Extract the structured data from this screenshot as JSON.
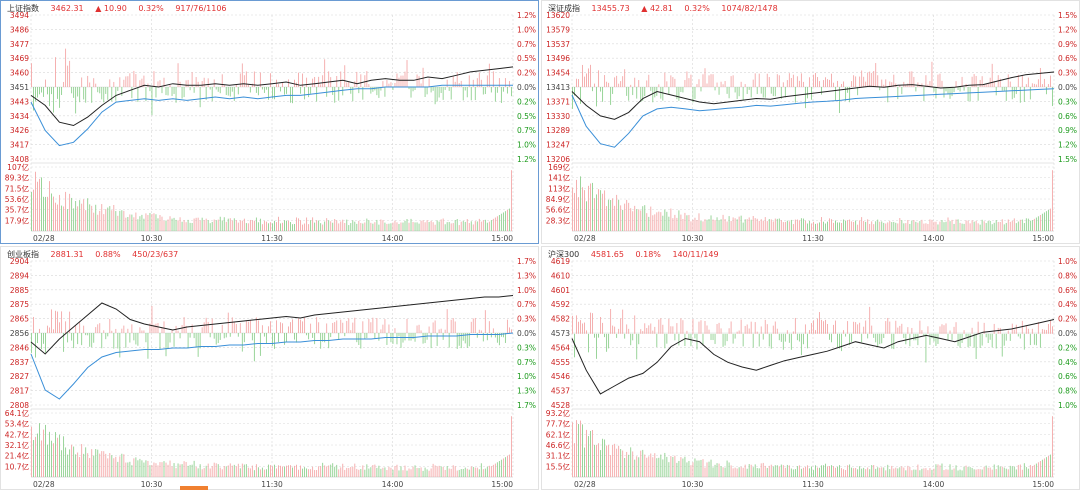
{
  "colors": {
    "up": "#e03030",
    "down": "#23a030",
    "price_line": "#222222",
    "avg_line": "#3a8fd8",
    "grid": "#d8d8d8",
    "label_left": "#cc2222",
    "label_right_green": "#1a9a1a"
  },
  "chart_data": [
    {
      "type": "line",
      "index_name": "上证指数",
      "price": "3462.31",
      "change": "▲ 10.90",
      "change_pct": "0.32%",
      "breadth": "917/76/1106",
      "active": true,
      "price_ticks": [
        "3494",
        "3486",
        "3477",
        "3469",
        "3460",
        "3451",
        "3443",
        "3434",
        "3426",
        "3417",
        "3408"
      ],
      "pct_ticks_up": [
        "1.2%",
        "1.0%",
        "0.7%",
        "0.5%",
        "0.2%"
      ],
      "pct_zero": "0.0%",
      "pct_ticks_down": [
        "0.2%",
        "0.5%",
        "0.7%",
        "1.0%",
        "1.2%"
      ],
      "volume_ticks": [
        "107亿",
        "89.3亿",
        "71.5亿",
        "53.6亿",
        "35.7亿",
        "17.9亿"
      ],
      "time_ticks": [
        "02/28",
        "10:30",
        "11:30",
        "14:00",
        "15:00"
      ],
      "ylim": [
        3408,
        3494
      ],
      "prev_close": 3451,
      "price_series": [
        3446,
        3440,
        3430,
        3428,
        3433,
        3440,
        3446,
        3449,
        3452,
        3451,
        3453,
        3452,
        3452,
        3453,
        3452,
        3453,
        3452,
        3453,
        3454,
        3452,
        3453,
        3454,
        3455,
        3453,
        3455,
        3456,
        3455,
        3455,
        3457,
        3456,
        3458,
        3460,
        3461,
        3462,
        3463
      ],
      "avg_series": [
        3442,
        3425,
        3416,
        3418,
        3426,
        3436,
        3442,
        3443,
        3444,
        3443,
        3444,
        3443,
        3444,
        3445,
        3444,
        3445,
        3444,
        3445,
        3446,
        3446,
        3447,
        3448,
        3449,
        3450,
        3450,
        3451,
        3451,
        3451,
        3451,
        3452,
        3452,
        3452,
        3452,
        3452,
        3452
      ]
    },
    {
      "type": "line",
      "index_name": "深证成指",
      "price": "13455.73",
      "change": "▲ 42.81",
      "change_pct": "0.32%",
      "breadth": "1074/82/1478",
      "active": false,
      "price_ticks": [
        "13620",
        "13579",
        "13537",
        "13496",
        "13454",
        "13413",
        "13371",
        "13330",
        "13289",
        "13247",
        "13206"
      ],
      "pct_ticks_up": [
        "1.5%",
        "1.2%",
        "0.9%",
        "0.6%",
        "0.3%"
      ],
      "pct_zero": "0.0%",
      "pct_ticks_down": [
        "0.3%",
        "0.6%",
        "0.9%",
        "1.2%",
        "1.5%"
      ],
      "volume_ticks": [
        "169亿",
        "141亿",
        "113亿",
        "84.9亿",
        "56.6亿",
        "28.3亿"
      ],
      "time_ticks": [
        "02/28",
        "10:30",
        "11:30",
        "14:00",
        "15:00"
      ],
      "ylim": [
        13206,
        13620
      ],
      "prev_close": 13413,
      "price_series": [
        13400,
        13360,
        13330,
        13320,
        13340,
        13380,
        13400,
        13390,
        13380,
        13370,
        13365,
        13370,
        13375,
        13380,
        13378,
        13385,
        13390,
        13395,
        13400,
        13405,
        13410,
        13415,
        13412,
        13418,
        13420,
        13415,
        13410,
        13412,
        13418,
        13420,
        13430,
        13440,
        13448,
        13452,
        13456
      ],
      "avg_series": [
        13390,
        13300,
        13250,
        13240,
        13280,
        13330,
        13350,
        13355,
        13350,
        13345,
        13348,
        13352,
        13355,
        13360,
        13358,
        13362,
        13366,
        13370,
        13372,
        13375,
        13380,
        13382,
        13384,
        13386,
        13388,
        13390,
        13392,
        13394,
        13396,
        13398,
        13400,
        13402,
        13404,
        13406,
        13408
      ]
    },
    {
      "type": "line",
      "index_name": "创业板指",
      "price": "2881.31",
      "change": "",
      "change_pct": "0.88%",
      "breadth": "450/23/637",
      "active": false,
      "price_ticks": [
        "2904",
        "2894",
        "2885",
        "2875",
        "2865",
        "2856",
        "2846",
        "2837",
        "2827",
        "2817",
        "2808"
      ],
      "pct_ticks_up": [
        "1.7%",
        "1.3%",
        "1.0%",
        "0.7%",
        "0.3%"
      ],
      "pct_zero": "0.0%",
      "pct_ticks_down": [
        "0.3%",
        "0.7%",
        "1.0%",
        "1.3%",
        "1.7%"
      ],
      "volume_ticks": [
        "64.1亿",
        "53.4亿",
        "42.7亿",
        "32.1亿",
        "21.4亿",
        "10.7亿"
      ],
      "time_ticks": [
        "02/28",
        "10:30",
        "11:30",
        "14:00",
        "15:00"
      ],
      "ylim": [
        2808,
        2904
      ],
      "prev_close": 2856,
      "price_series": [
        2850,
        2842,
        2852,
        2860,
        2868,
        2876,
        2872,
        2865,
        2862,
        2860,
        2858,
        2860,
        2861,
        2862,
        2863,
        2864,
        2865,
        2866,
        2867,
        2866,
        2868,
        2869,
        2870,
        2871,
        2872,
        2873,
        2874,
        2875,
        2876,
        2877,
        2878,
        2879,
        2880,
        2880,
        2881
      ],
      "avg_series": [
        2842,
        2818,
        2812,
        2822,
        2833,
        2840,
        2843,
        2844,
        2845,
        2845,
        2846,
        2846,
        2847,
        2847,
        2848,
        2848,
        2849,
        2849,
        2850,
        2850,
        2851,
        2851,
        2852,
        2852,
        2852,
        2853,
        2853,
        2853,
        2854,
        2854,
        2854,
        2855,
        2855,
        2855,
        2856
      ]
    },
    {
      "type": "line",
      "index_name": "沪深300",
      "price": "4581.65",
      "change": "",
      "change_pct": "0.18%",
      "breadth": "140/11/149",
      "active": false,
      "price_ticks": [
        "4619",
        "4610",
        "4601",
        "4592",
        "4582",
        "4573",
        "4564",
        "4555",
        "4546",
        "4537",
        "4528"
      ],
      "pct_ticks_up": [
        "1.0%",
        "0.8%",
        "0.6%",
        "0.4%",
        "0.2%"
      ],
      "pct_zero": "0.0%",
      "pct_ticks_down": [
        "0.2%",
        "0.4%",
        "0.6%",
        "0.8%",
        "1.0%"
      ],
      "volume_ticks": [
        "93.2亿",
        "77.7亿",
        "62.1亿",
        "46.6亿",
        "31.1亿",
        "15.5亿"
      ],
      "time_ticks": [
        "02/28",
        "10:30",
        "11:30",
        "14:00",
        "15:00"
      ],
      "ylim": [
        4528,
        4619
      ],
      "prev_close": 4573,
      "price_series": [
        4570,
        4550,
        4535,
        4540,
        4545,
        4548,
        4555,
        4565,
        4570,
        4568,
        4560,
        4555,
        4552,
        4550,
        4553,
        4556,
        4558,
        4560,
        4562,
        4565,
        4568,
        4566,
        4564,
        4568,
        4570,
        4572,
        4570,
        4568,
        4571,
        4574,
        4575,
        4576,
        4578,
        4580,
        4582
      ],
      "avg_series": []
    }
  ]
}
